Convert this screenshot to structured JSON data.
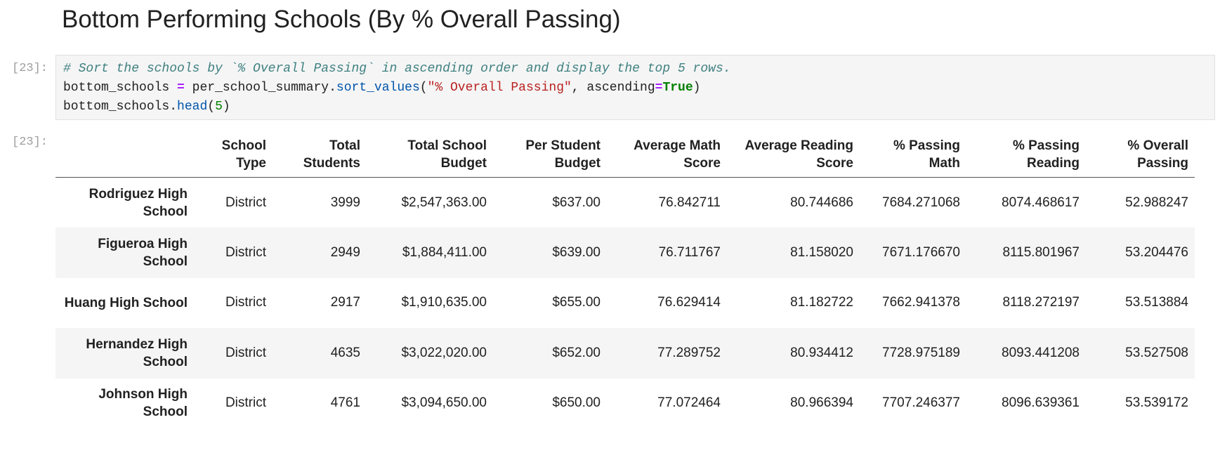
{
  "heading": "Bottom Performing Schools (By % Overall Passing)",
  "input_prompt": "[23]:",
  "code": {
    "lines": [
      [
        "# Sort the schools by `% Overall Passing` in ascending order and display the top 5 rows."
      ],
      [
        "bottom_schools",
        " ",
        "=",
        " ",
        "per_school_summary",
        ".",
        "sort_values",
        "(",
        "\"% Overall Passing\"",
        ", ascending",
        "=",
        "True",
        ")"
      ],
      [
        "bottom_schools",
        ".",
        "head",
        "(",
        "5",
        ")"
      ]
    ]
  },
  "output_prompt": "[23]:",
  "table": {
    "columns": [
      "School Type",
      "Total Students",
      "Total School Budget",
      "Per Student Budget",
      "Average Math Score",
      "Average Reading Score",
      "% Passing Math",
      "% Passing Reading",
      "% Overall Passing"
    ],
    "rows": [
      {
        "index": "Rodriguez High School",
        "cells": [
          "District",
          "3999",
          "$2,547,363.00",
          "$637.00",
          "76.842711",
          "80.744686",
          "7684.271068",
          "8074.468617",
          "52.988247"
        ]
      },
      {
        "index": "Figueroa High School",
        "cells": [
          "District",
          "2949",
          "$1,884,411.00",
          "$639.00",
          "76.711767",
          "81.158020",
          "7671.176670",
          "8115.801967",
          "53.204476"
        ]
      },
      {
        "index": "Huang High School",
        "cells": [
          "District",
          "2917",
          "$1,910,635.00",
          "$655.00",
          "76.629414",
          "81.182722",
          "7662.941378",
          "8118.272197",
          "53.513884"
        ]
      },
      {
        "index": "Hernandez High School",
        "cells": [
          "District",
          "4635",
          "$3,022,020.00",
          "$652.00",
          "77.289752",
          "80.934412",
          "7728.975189",
          "8093.441208",
          "53.527508"
        ]
      },
      {
        "index": "Johnson High School",
        "cells": [
          "District",
          "4761",
          "$3,094,650.00",
          "$650.00",
          "77.072464",
          "80.966394",
          "7707.246377",
          "8096.639361",
          "53.539172"
        ]
      }
    ]
  }
}
